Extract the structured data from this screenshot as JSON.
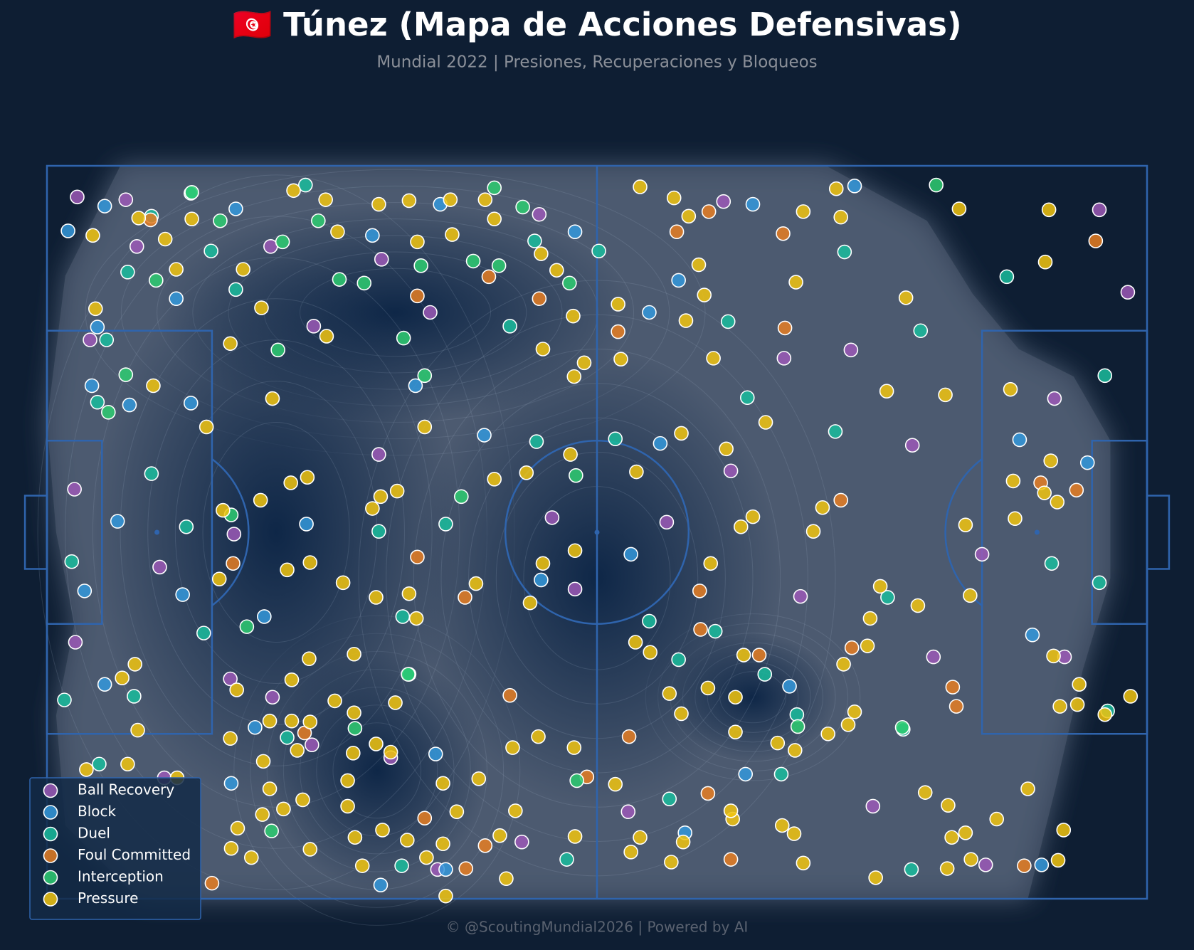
{
  "chart_data": {
    "type": "scatter",
    "title": "🇹🇳 Túnez (Mapa de Acciones Defensivas)",
    "subtitle": "Mundial 2022 | Presiones, Recuperaciones y Bloqueos",
    "footer": "© @ScoutingMundial2026 | Powered by AI",
    "xlim": [
      0,
      120
    ],
    "ylim": [
      0,
      80
    ],
    "y_inverted": true,
    "legend": "lower left",
    "series": [
      {
        "name": "Ball Recovery",
        "color": "#9b59b6",
        "x": [
          3.3,
          8.6,
          9.8,
          4.7,
          3.0,
          12.3,
          3.1,
          24.4,
          29.1,
          36.5,
          41.8,
          36.2,
          55.1,
          57.6,
          67.6,
          74.6,
          80.4,
          87.7,
          94.4,
          102.0,
          96.7,
          111.0,
          109.9,
          117.9,
          114.8,
          73.8,
          53.7,
          82.2,
          102.4,
          90.1,
          63.4,
          51.8,
          42.6,
          37.5,
          28.9,
          24.6,
          20.0,
          12.8,
          20.4
        ],
        "y": [
          3.4,
          3.7,
          8.8,
          19.0,
          35.3,
          43.8,
          52.0,
          8.8,
          17.5,
          10.2,
          16.0,
          31.5,
          38.4,
          46.2,
          38.9,
          33.3,
          21.0,
          20.1,
          30.5,
          42.4,
          53.6,
          53.6,
          25.4,
          13.8,
          4.8,
          3.9,
          5.3,
          47.0,
          76.3,
          69.9,
          70.5,
          73.8,
          76.8,
          64.6,
          63.2,
          58.0,
          56.0,
          66.8,
          40.2
        ]
      },
      {
        "name": "Block",
        "color": "#3498db",
        "x": [
          6.3,
          2.3,
          5.5,
          14.1,
          4.9,
          9.0,
          15.7,
          7.7,
          4.1,
          14.8,
          6.3,
          22.7,
          23.7,
          28.3,
          20.1,
          36.4,
          43.5,
          42.4,
          40.2,
          47.7,
          53.9,
          63.7,
          65.7,
          68.9,
          66.9,
          57.6,
          42.9,
          77.0,
          88.1,
          81.0,
          76.2,
          69.6,
          106.1,
          113.5,
          107.5,
          108.5,
          20.6,
          35.5
        ],
        "y": [
          4.4,
          7.1,
          17.6,
          14.5,
          24.0,
          26.1,
          25.9,
          38.8,
          46.4,
          46.8,
          56.6,
          61.3,
          49.2,
          39.1,
          67.4,
          78.5,
          76.8,
          64.2,
          24.0,
          29.4,
          45.2,
          42.4,
          16.0,
          12.5,
          30.3,
          7.2,
          4.2,
          4.2,
          2.2,
          56.8,
          66.4,
          72.8,
          29.9,
          32.4,
          51.2,
          76.3,
          4.7,
          7.6
        ]
      },
      {
        "name": "Duel",
        "color": "#1abc9c",
        "x": [
          15.7,
          11.4,
          28.2,
          17.9,
          20.6,
          8.8,
          6.5,
          5.5,
          11.4,
          15.2,
          2.7,
          1.9,
          9.5,
          17.1,
          5.7,
          26.2,
          36.2,
          38.8,
          39.5,
          38.7,
          50.5,
          53.2,
          53.4,
          43.5,
          62.0,
          60.2,
          74.3,
          76.4,
          65.7,
          68.9,
          72.9,
          78.3,
          81.8,
          80.1,
          67.9,
          56.7,
          86.0,
          87.0,
          95.3,
          104.7,
          115.4,
          109.6,
          114.8,
          91.7,
          93.4,
          94.3,
          115.7
        ],
        "y": [
          3.0,
          5.5,
          2.1,
          9.3,
          13.5,
          11.6,
          19.0,
          25.8,
          33.6,
          39.4,
          43.2,
          58.3,
          57.9,
          51.0,
          65.3,
          62.4,
          39.9,
          49.2,
          55.5,
          76.4,
          17.5,
          8.2,
          30.1,
          39.1,
          29.8,
          9.3,
          17.0,
          25.3,
          49.7,
          53.9,
          50.8,
          55.5,
          59.9,
          66.4,
          69.1,
          75.7,
          29.0,
          9.4,
          18.0,
          12.1,
          22.9,
          43.4,
          45.5,
          47.1,
          61.5,
          76.8,
          59.5
        ]
      },
      {
        "name": "Foul Committed",
        "color": "#e67e22",
        "x": [
          11.3,
          40.4,
          48.2,
          53.7,
          62.3,
          68.7,
          72.2,
          80.3,
          80.5,
          86.6,
          108.4,
          112.3,
          114.4,
          87.8,
          77.7,
          71.3,
          71.2,
          63.5,
          58.9,
          72.1,
          74.6,
          98.8,
          99.2,
          106.6,
          45.7,
          47.8,
          41.2,
          40.4,
          45.6,
          50.5,
          28.1,
          20.3,
          18.0
        ],
        "y": [
          5.9,
          14.2,
          12.1,
          14.5,
          18.1,
          7.2,
          5.0,
          7.4,
          17.7,
          36.5,
          34.6,
          35.4,
          8.2,
          52.6,
          53.4,
          50.6,
          46.4,
          62.3,
          66.7,
          68.5,
          75.7,
          56.9,
          59.0,
          76.4,
          76.7,
          74.2,
          71.2,
          42.7,
          47.1,
          57.8,
          61.9,
          43.4,
          78.3
        ]
      },
      {
        "name": "Interception",
        "color": "#2ecc71",
        "x": [
          15.8,
          18.9,
          25.7,
          29.6,
          31.9,
          34.6,
          40.8,
          46.5,
          49.3,
          48.8,
          51.9,
          57.0,
          57.7,
          57.8,
          38.9,
          41.2,
          45.2,
          33.6,
          39.4,
          24.5,
          21.8,
          20.1,
          25.2,
          8.6,
          6.7,
          11.9,
          97.0,
          81.9,
          93.3
        ],
        "y": [
          2.9,
          6.0,
          8.3,
          6.0,
          12.4,
          12.8,
          10.9,
          10.4,
          10.9,
          2.4,
          4.5,
          12.8,
          33.8,
          67.1,
          18.8,
          22.9,
          36.1,
          61.4,
          55.5,
          72.6,
          50.3,
          38.1,
          20.1,
          22.8,
          26.9,
          12.5,
          2.1,
          61.2,
          61.3
        ]
      },
      {
        "name": "Pressure",
        "color": "#f1c40f",
        "x": [
          5.0,
          10.0,
          12.9,
          14.1,
          15.8,
          5.3,
          11.6,
          17.4,
          20.0,
          21.4,
          23.4,
          24.6,
          26.9,
          30.4,
          31.7,
          30.5,
          36.2,
          39.5,
          40.4,
          44.2,
          47.8,
          44.0,
          48.8,
          53.9,
          55.6,
          57.4,
          54.1,
          57.5,
          58.6,
          62.6,
          62.3,
          64.7,
          68.4,
          70.0,
          71.1,
          71.7,
          69.7,
          72.7,
          81.7,
          82.5,
          86.1,
          86.6,
          93.7,
          99.5,
          109.3,
          108.9,
          105.1,
          98.0,
          91.6,
          78.4,
          74.1,
          69.2,
          64.3,
          57.1,
          52.3,
          48.8,
          41.2,
          38.2,
          23.3,
          19.2,
          28.7,
          26.2,
          18.8,
          32.3,
          35.9,
          39.5,
          40.3,
          46.8,
          52.7,
          54.1,
          57.6,
          72.4,
          75.7,
          77.0,
          83.6,
          84.6,
          90.9,
          95.0,
          89.8,
          89.5,
          86.9,
          76.0,
          75.1,
          72.1,
          67.9,
          65.8,
          64.2,
          69.2,
          75.1,
          85.2,
          87.4,
          88.1,
          81.6,
          79.7,
          95.8,
          98.3,
          107.0,
          103.6,
          110.9,
          98.7,
          100.2,
          100.8,
          98.2,
          90.4,
          110.3,
          110.5,
          112.4,
          112.6,
          115.4,
          118.2,
          109.8,
          100.7,
          109.5,
          108.8,
          110.2,
          105.4,
          105.6,
          100.2,
          82.5,
          81.5,
          80.2,
          74.8,
          74.6,
          68.1,
          69.4,
          64.7,
          63.7,
          62.0,
          57.6,
          57.5,
          53.6,
          50.8,
          51.1,
          49.4,
          50.1,
          43.5,
          43.2,
          44.7,
          43.2,
          47.1,
          41.4,
          39.3,
          36.6,
          33.6,
          34.4,
          32.8,
          32.8,
          28.7,
          27.9,
          25.8,
          23.5,
          24.3,
          23.6,
          20.8,
          20.1,
          22.3,
          14.2,
          8.8,
          4.3,
          9.9,
          8.2,
          9.6,
          20.0,
          26.7,
          24.3,
          28.7,
          27.3,
          33.4,
          35.9,
          37.5,
          38.0,
          33.5,
          31.4,
          33.5,
          28.6,
          26.7,
          20.7,
          28.4,
          26.6,
          35.5,
          36.4
        ],
        "y": [
          7.6,
          5.7,
          8.0,
          11.3,
          5.8,
          15.6,
          24.0,
          28.5,
          19.4,
          11.3,
          15.5,
          25.4,
          2.7,
          3.7,
          7.2,
          18.6,
          4.2,
          3.8,
          8.3,
          7.5,
          3.7,
          3.7,
          5.8,
          9.6,
          11.4,
          16.4,
          20.0,
          23.0,
          21.5,
          21.1,
          15.1,
          2.3,
          3.5,
          5.5,
          10.8,
          14.1,
          16.9,
          21.0,
          12.7,
          5.0,
          2.5,
          5.6,
          14.4,
          4.7,
          4.8,
          10.5,
          24.4,
          25.0,
          24.6,
          28.0,
          30.9,
          29.2,
          33.4,
          31.5,
          33.5,
          34.2,
          28.5,
          35.5,
          36.5,
          37.6,
          43.3,
          44.1,
          45.1,
          45.5,
          47.1,
          46.7,
          49.4,
          45.6,
          47.7,
          43.4,
          42.0,
          43.4,
          39.4,
          38.3,
          39.9,
          37.3,
          45.9,
          48.0,
          49.4,
          52.4,
          54.4,
          53.4,
          58.0,
          57.0,
          57.6,
          53.1,
          52.0,
          59.8,
          61.8,
          62.0,
          61.0,
          59.6,
          63.8,
          63.0,
          68.4,
          69.8,
          68.0,
          71.3,
          72.5,
          73.3,
          72.8,
          75.7,
          76.7,
          77.7,
          75.8,
          59.0,
          58.8,
          56.6,
          59.9,
          57.9,
          53.5,
          46.9,
          32.2,
          35.7,
          36.7,
          34.4,
          38.5,
          39.2,
          76.1,
          72.9,
          72.0,
          71.3,
          70.4,
          76.0,
          73.8,
          73.3,
          74.9,
          67.5,
          73.2,
          63.5,
          62.3,
          63.5,
          70.4,
          73.1,
          77.8,
          79.7,
          74.0,
          70.5,
          67.4,
          66.9,
          75.5,
          73.6,
          72.5,
          73.3,
          76.4,
          67.1,
          69.9,
          74.6,
          69.2,
          70.2,
          70.8,
          68.0,
          65.0,
          72.3,
          74.5,
          75.5,
          66.8,
          65.3,
          65.9,
          61.6,
          55.9,
          54.4,
          62.5,
          60.6,
          60.6,
          60.7,
          63.8,
          64.1,
          63.1,
          64.0,
          58.6,
          59.7,
          58.4,
          53.3,
          53.8,
          56.1,
          57.2,
          34.0,
          34.6,
          37.4,
          36.1
        ]
      }
    ]
  }
}
